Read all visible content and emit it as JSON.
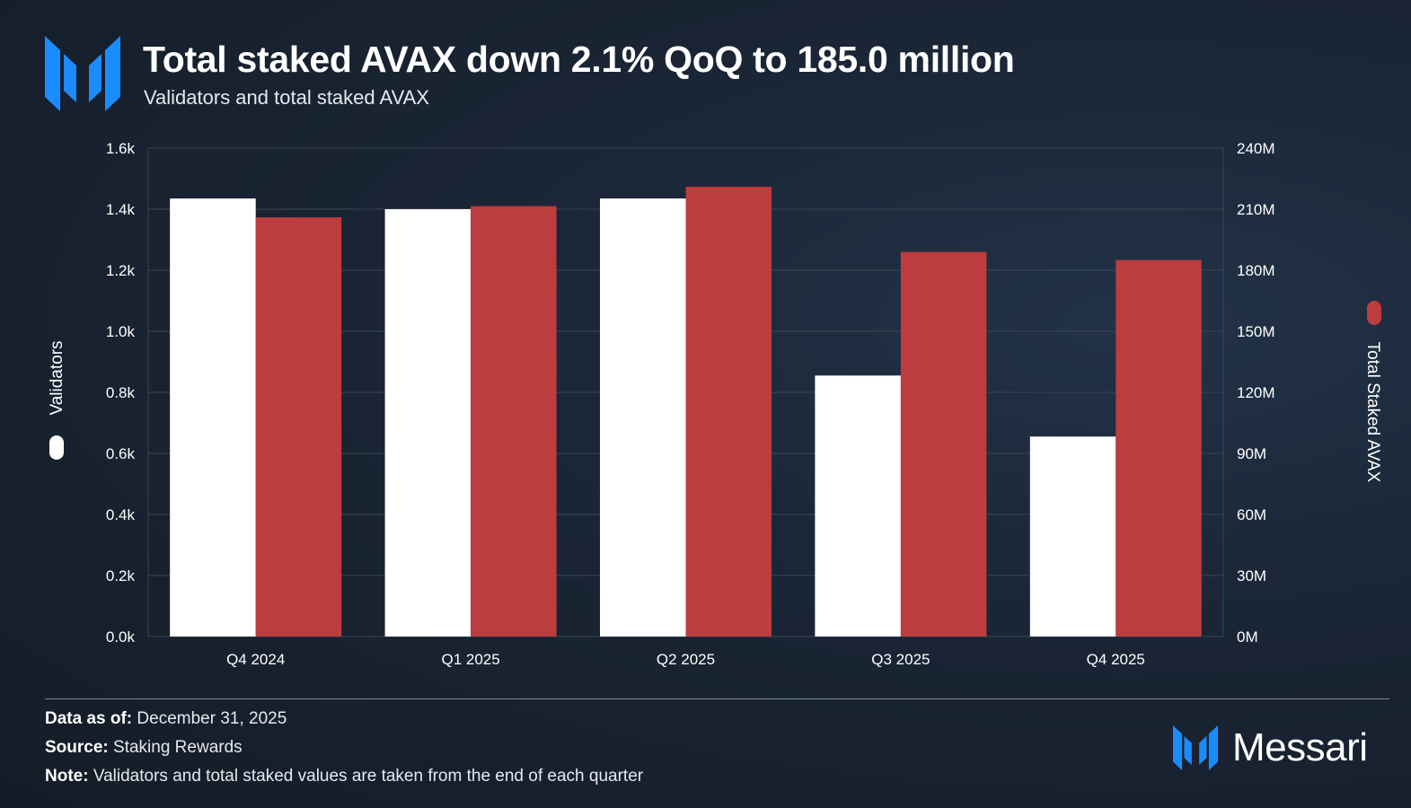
{
  "header": {
    "title": "Total staked AVAX down 2.1% QoQ to 185.0 million",
    "subtitle": "Validators and total staked AVAX",
    "logo_icon": "messari-m-logo-icon"
  },
  "colors": {
    "validators": "#ffffff",
    "staked": "#bd3c3f",
    "brand_blue": "#1a8cff",
    "grid": "#3a4655"
  },
  "chart_data": {
    "type": "bar",
    "categories": [
      "Q4 2024",
      "Q1 2025",
      "Q2 2025",
      "Q3 2025",
      "Q4 2025"
    ],
    "series": [
      {
        "name": "Validators",
        "axis": "left",
        "color": "#ffffff",
        "values": [
          1435,
          1400,
          1435,
          855,
          655
        ]
      },
      {
        "name": "Total Staked AVAX",
        "axis": "right",
        "color": "#bd3c3f",
        "values": [
          206,
          211.5,
          221,
          189,
          185
        ]
      }
    ],
    "left_axis": {
      "label": "Validators",
      "ylim": [
        0,
        1600
      ],
      "ticks": [
        0,
        200,
        400,
        600,
        800,
        1000,
        1200,
        1400,
        1600
      ],
      "tick_labels": [
        "0.0k",
        "0.2k",
        "0.4k",
        "0.6k",
        "0.8k",
        "1.0k",
        "1.2k",
        "1.4k",
        "1.6k"
      ]
    },
    "right_axis": {
      "label": "Total Staked AVAX",
      "ylim": [
        0,
        240
      ],
      "ticks": [
        0,
        30,
        60,
        90,
        120,
        150,
        180,
        210,
        240
      ],
      "tick_labels": [
        "0M",
        "30M",
        "60M",
        "90M",
        "120M",
        "150M",
        "180M",
        "210M",
        "240M"
      ]
    },
    "grid": true,
    "legend": "axis-titles"
  },
  "footer": {
    "date_label": "Data as of:",
    "date_value": "December 31, 2025",
    "source_label": "Source:",
    "source_value": "Staking Rewards",
    "note_label": "Note:",
    "note_value": "Validators and total staked values are taken from the end of each quarter",
    "brand": "Messari"
  }
}
